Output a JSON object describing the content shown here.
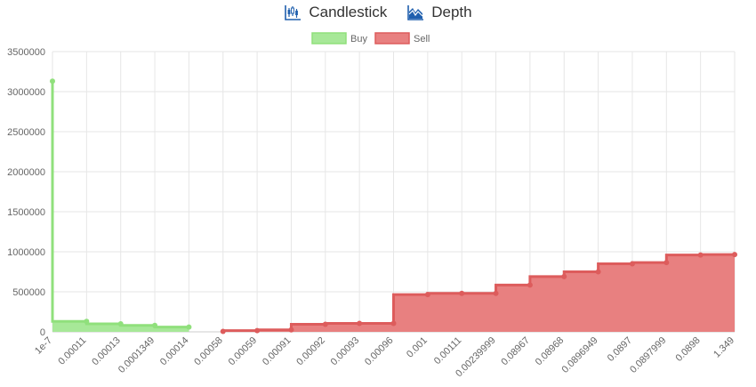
{
  "tabs": [
    {
      "label": "Candlestick",
      "icon": "candlestick-chart-icon"
    },
    {
      "label": "Depth",
      "icon": "depth-chart-icon"
    }
  ],
  "colors": {
    "accent": "#1f5fae",
    "buy_fill": "#a7e898",
    "buy_line": "#90e07c",
    "sell_fill": "#e88080",
    "sell_line": "#dd5c5c",
    "grid": "#e6e6e6",
    "tick_text": "#666666"
  },
  "chart_data": {
    "type": "area",
    "title": "",
    "xlabel": "",
    "ylabel": "",
    "ylim": [
      0,
      3500000
    ],
    "yticks": [
      0,
      500000,
      1000000,
      1500000,
      2000000,
      2500000,
      3000000,
      3500000
    ],
    "legend_position": "top-center",
    "grid": true,
    "x": [
      "1e-7",
      "0.00011",
      "0.00013",
      "0.0001349",
      "0.00014",
      "0.00058",
      "0.00059",
      "0.00091",
      "0.00092",
      "0.00093",
      "0.00096",
      "0.001",
      "0.00111",
      "0.00239999",
      "0.08967",
      "0.08968",
      "0.0896949",
      "0.0897",
      "0.0897999",
      "0.0898",
      "1.349"
    ],
    "series": [
      {
        "name": "Buy",
        "step": true,
        "values": [
          3130000,
          130000,
          100000,
          80000,
          60000,
          null,
          null,
          null,
          null,
          null,
          null,
          null,
          null,
          null,
          null,
          null,
          null,
          null,
          null,
          null,
          null
        ]
      },
      {
        "name": "Sell",
        "step": true,
        "values": [
          null,
          null,
          null,
          null,
          null,
          5000,
          15000,
          25000,
          95000,
          105000,
          105000,
          465000,
          480000,
          480000,
          585000,
          690000,
          750000,
          850000,
          865000,
          960000,
          965000
        ]
      }
    ]
  }
}
